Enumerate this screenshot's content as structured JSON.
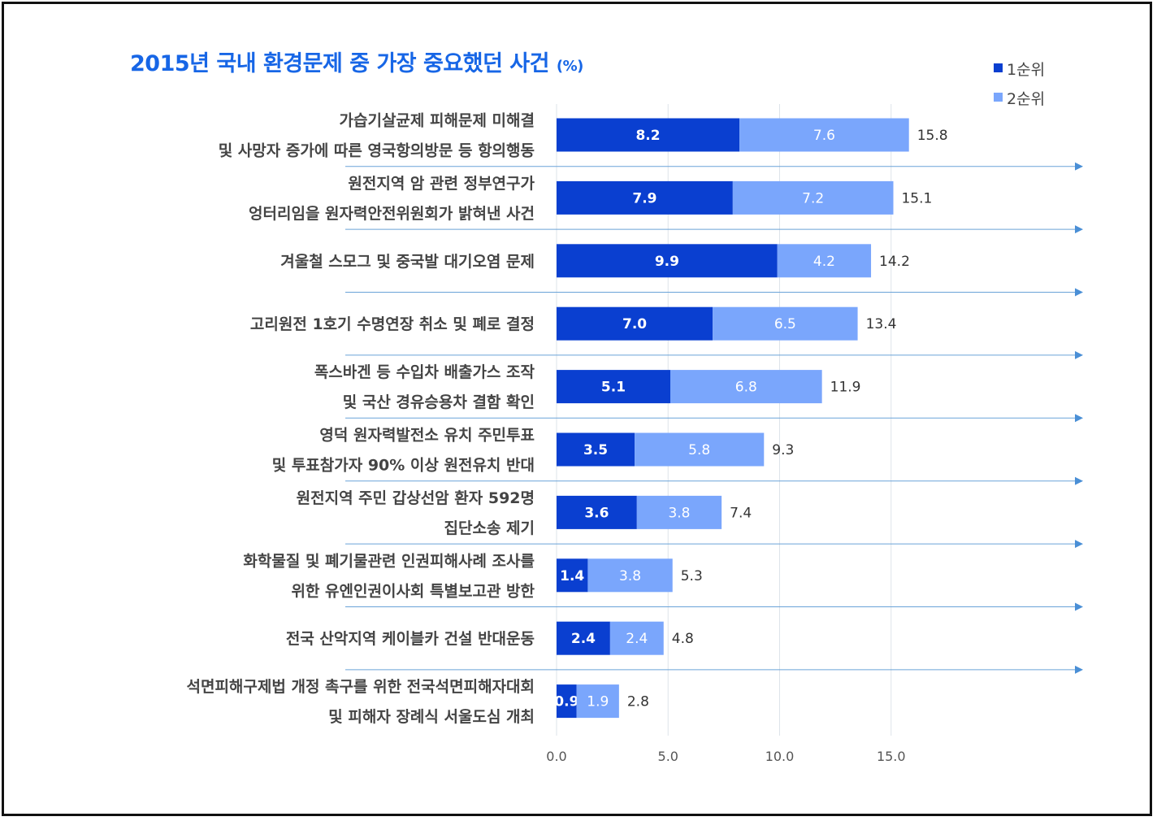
{
  "chart_data": {
    "type": "bar",
    "orientation": "horizontal",
    "stacked": true,
    "title": "2015년 국내 환경문제 중 가장 중요했던 사건",
    "title_unit": "(%)",
    "categories": [
      [
        "가습기살균제 피해문제 미해결",
        "및 사망자 증가에 따른 영국항의방문 등 항의행동"
      ],
      [
        "원전지역 암 관련 정부연구가",
        "엉터리임을 원자력안전위원회가 밝혀낸 사건"
      ],
      [
        "겨울철 스모그 및 중국발 대기오염 문제"
      ],
      [
        "고리원전 1호기 수명연장 취소 및 폐로 결정"
      ],
      [
        "폭스바겐 등 수입차 배출가스 조작",
        "및 국산 경유승용차 결함 확인"
      ],
      [
        "영덕 원자력발전소 유치 주민투표",
        "및 투표참가자 90% 이상 원전유치 반대"
      ],
      [
        "원전지역 주민 갑상선암 환자 592명",
        "집단소송 제기"
      ],
      [
        "화학물질 및 폐기물관련 인권피해사례 조사를",
        "위한 유엔인권이사회 특별보고관 방한"
      ],
      [
        "전국 산악지역 케이블카 건설 반대운동"
      ],
      [
        "석면피해구제법 개정 촉구를 위한 전국석면피해자대회",
        "및 피해자 장례식 서울도심 개최"
      ]
    ],
    "series": [
      {
        "name": "1순위",
        "color": "#0a3fd0",
        "values": [
          8.2,
          7.9,
          9.9,
          7.0,
          5.1,
          3.5,
          3.6,
          1.4,
          2.4,
          0.9
        ]
      },
      {
        "name": "2순위",
        "color": "#7aa6fc",
        "values": [
          7.6,
          7.2,
          4.2,
          6.5,
          6.8,
          5.8,
          3.8,
          3.8,
          2.4,
          1.9
        ]
      }
    ],
    "totals": [
      15.8,
      15.1,
      14.2,
      13.4,
      11.9,
      9.3,
      7.4,
      5.3,
      4.8,
      2.8
    ],
    "xlim": [
      0,
      20
    ],
    "xticks": [
      "0.0",
      "5.0",
      "10.0",
      "15.0"
    ],
    "grid": true,
    "legend": "top-right"
  }
}
